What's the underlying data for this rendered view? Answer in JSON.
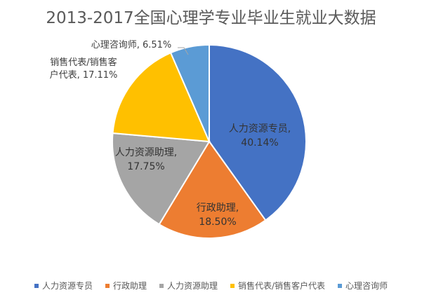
{
  "chart_data": {
    "type": "pie",
    "title": "2013-2017全国心理学专业毕业生就业大数据",
    "slices": [
      {
        "name": "人力资源专员",
        "value": 40.14,
        "label_lines": [
          "人力资源专员,",
          "40.14%"
        ],
        "color": "#4472C4"
      },
      {
        "name": "行政助理",
        "value": 18.5,
        "label_lines": [
          "行政助理,",
          "18.50%"
        ],
        "color": "#ED7D31"
      },
      {
        "name": "人力资源助理",
        "value": 17.75,
        "label_lines": [
          "人力资源助理,",
          "17.75%"
        ],
        "color": "#A5A5A5"
      },
      {
        "name": "销售代表/销售客户代表",
        "value": 17.11,
        "label_lines": [
          "销售代表/销售客",
          "户代表, 17.11%"
        ],
        "color": "#FFC000"
      },
      {
        "name": "心理咨询师",
        "value": 6.51,
        "label_lines": [
          "心理咨询师, 6.51%"
        ],
        "color": "#5B9BD5"
      }
    ],
    "legend_position": "bottom",
    "legend": [
      "人力资源专员",
      "行政助理",
      "人力资源助理",
      "销售代表/销售客户代表",
      "心理咨询师"
    ]
  }
}
